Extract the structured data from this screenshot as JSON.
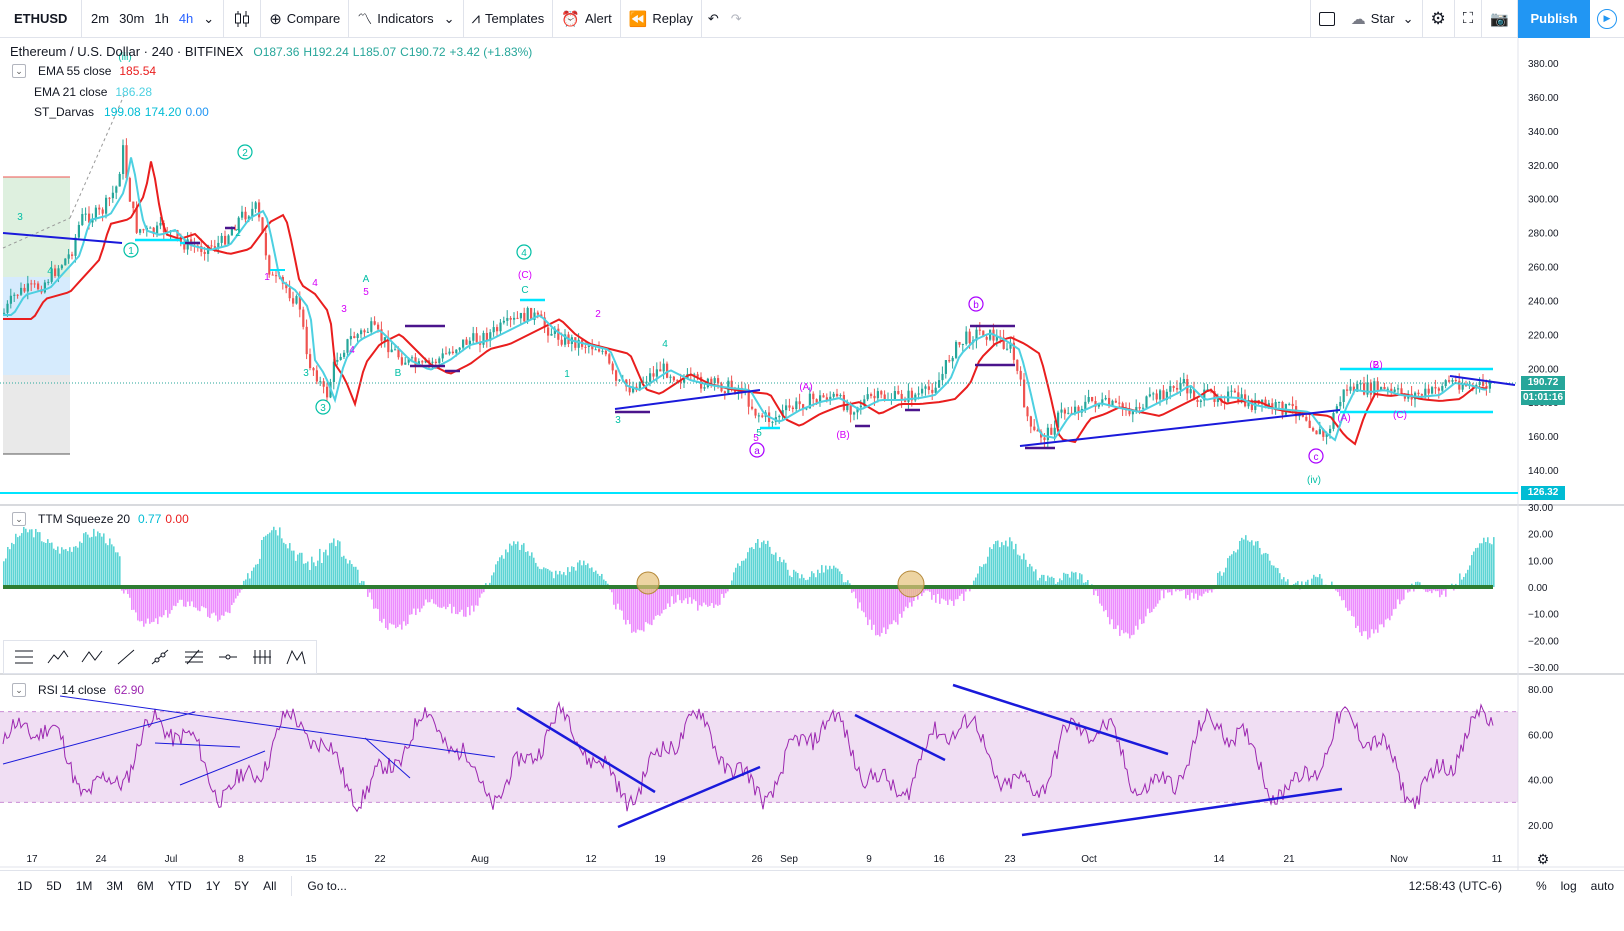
{
  "toolbar": {
    "symbol": "ETHUSD",
    "intervals": [
      "2m",
      "30m",
      "1h",
      "4h"
    ],
    "compare": "Compare",
    "indicators": "Indicators",
    "templates": "Templates",
    "alert": "Alert",
    "replay": "Replay",
    "star": "Star",
    "publish": "Publish"
  },
  "legend": {
    "title": "Ethereum / U.S. Dollar · 240 · BITFINEX",
    "o": "O187.36",
    "h": "H192.24",
    "l": "L185.07",
    "c": "C190.72",
    "chg": "+3.42 (+1.83%)",
    "ema55_label": "EMA 55 close",
    "ema55_val": "185.54",
    "ema21_label": "EMA 21 close",
    "ema21_val": "186.28",
    "darvas_label": "ST_Darvas",
    "darvas_v1": "199.08",
    "darvas_v2": "174.20",
    "darvas_v3": "0.00",
    "ttm_label": "TTM Squeeze 20",
    "ttm_v1": "0.77",
    "ttm_v2": "0.00",
    "rsi_label": "RSI 14 close",
    "rsi_val": "62.90"
  },
  "colors": {
    "up": "#26a69a",
    "down": "#ef5350",
    "ema55": "#e91e1e",
    "ema21": "#4dd0e1",
    "darvas": "#00e5ff",
    "rsi": "#9c27b0",
    "accent": "#2196f3",
    "trend": "#1a1adb"
  },
  "price_axis": {
    "ticks": [
      "380.00",
      "360.00",
      "340.00",
      "320.00",
      "300.00",
      "280.00",
      "260.00",
      "240.00",
      "220.00",
      "200.00",
      "180.00",
      "160.00",
      "140.00"
    ],
    "last_price": "190.72",
    "countdown": "01:01:16",
    "support": "126.32"
  },
  "ttm_axis": {
    "ticks": [
      "30.00",
      "20.00",
      "10.00",
      "0.00",
      "−10.00",
      "−20.00",
      "−30.00"
    ]
  },
  "rsi_axis": {
    "ticks": [
      "80.00",
      "60.00",
      "40.00",
      "20.00"
    ]
  },
  "time_axis": {
    "ticks": [
      "17",
      "24",
      "Jul",
      "8",
      "15",
      "22",
      "Aug",
      "12",
      "19",
      "26",
      "Sep",
      "9",
      "16",
      "23",
      "Oct",
      "14",
      "21",
      "Nov",
      "11"
    ]
  },
  "waves": [
    {
      "t": "(iii)",
      "c": "#00bfa5"
    },
    {
      "t": "2",
      "c": "#00bfa5",
      "circ": true
    },
    {
      "t": "1",
      "c": "#00bfa5",
      "circ": true
    },
    {
      "t": "3",
      "c": "#00bfa5",
      "circ": true
    },
    {
      "t": "4",
      "c": "#00bfa5",
      "circ": true
    },
    {
      "t": "(C)",
      "c": "#d500f9"
    },
    {
      "t": "C",
      "c": "#00bfa5"
    },
    {
      "t": "b",
      "c": "#aa00ff",
      "circ": true
    },
    {
      "t": "a",
      "c": "#aa00ff",
      "circ": true
    },
    {
      "t": "c",
      "c": "#aa00ff",
      "circ": true
    },
    {
      "t": "(iv)",
      "c": "#00bfa5"
    },
    {
      "t": "(A)",
      "c": "#d500f9"
    },
    {
      "t": "(B)",
      "c": "#d500f9"
    },
    {
      "t": "(C)",
      "c": "#d500f9"
    },
    {
      "t": "A",
      "c": "#00bfa5"
    },
    {
      "t": "5",
      "c": "#d500f9"
    },
    {
      "t": "B",
      "c": "#00bfa5"
    },
    {
      "t": "3",
      "c": "#d500f9"
    },
    {
      "t": "5",
      "c": "#d500f9"
    },
    {
      "t": "2",
      "c": "#d500f9"
    },
    {
      "t": "1",
      "c": "#d500f9"
    },
    {
      "t": "2",
      "c": "#d500f9"
    },
    {
      "t": "4",
      "c": "#d500f9"
    },
    {
      "t": "3",
      "c": "#00bfa5"
    },
    {
      "t": "4",
      "c": "#00bfa5"
    },
    {
      "t": "2",
      "c": "#00bfa5"
    },
    {
      "t": "1",
      "c": "#00bfa5"
    },
    {
      "t": "3",
      "c": "#00bfa5"
    },
    {
      "t": "(A)",
      "c": "#d500f9"
    },
    {
      "t": "(B)",
      "c": "#d500f9"
    },
    {
      "t": "5",
      "c": "#00bfa5"
    },
    {
      "t": "4",
      "c": "#d500f9"
    },
    {
      "t": "3",
      "c": "#00bfa5"
    },
    {
      "t": "4",
      "c": "#00bfa5"
    }
  ],
  "ranges": [
    "1D",
    "5D",
    "1M",
    "3M",
    "6M",
    "YTD",
    "1Y",
    "5Y",
    "All"
  ],
  "goto": "Go to...",
  "clock": "12:58:43 (UTC-6)",
  "bottom_opts": [
    "%",
    "log",
    "auto"
  ]
}
